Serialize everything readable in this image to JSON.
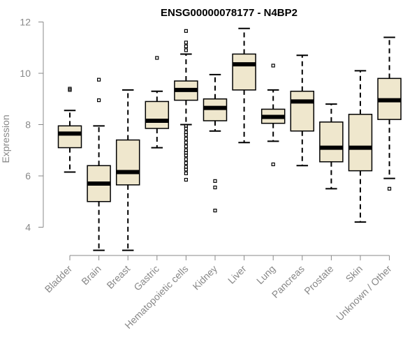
{
  "chart_data": {
    "type": "boxplot",
    "title": "ENSG00000078177 - N4BP2",
    "xlabel": "",
    "ylabel": "Expression",
    "ylim": [
      3,
      12.2
    ],
    "yticks": [
      4,
      6,
      8,
      10,
      12
    ],
    "box_color": "#efe7cd",
    "categories": [
      "Bladder",
      "Brain",
      "Breast",
      "Gastric",
      "Hematopoietic cells",
      "Kidney",
      "Liver",
      "Lung",
      "Pancreas",
      "Prostate",
      "Skin",
      "Unknown / Other"
    ],
    "boxes": [
      {
        "name": "Bladder",
        "whisker_low": 6.15,
        "q1": 7.1,
        "median": 7.65,
        "q3": 7.95,
        "whisker_high": 8.55,
        "outliers": [
          9.35,
          9.4
        ]
      },
      {
        "name": "Brain",
        "whisker_low": 3.1,
        "q1": 5.0,
        "median": 5.7,
        "q3": 6.4,
        "whisker_high": 7.95,
        "outliers": [
          8.95,
          9.75
        ]
      },
      {
        "name": "Breast",
        "whisker_low": 3.1,
        "q1": 5.65,
        "median": 6.15,
        "q3": 7.4,
        "whisker_high": 9.35,
        "outliers": []
      },
      {
        "name": "Gastric",
        "whisker_low": 7.1,
        "q1": 7.85,
        "median": 8.15,
        "q3": 8.9,
        "whisker_high": 9.3,
        "outliers": [
          10.6
        ]
      },
      {
        "name": "Hematopoietic cells",
        "whisker_low": 8.0,
        "q1": 8.95,
        "median": 9.35,
        "q3": 9.7,
        "whisker_high": 10.75,
        "outliers": [
          11.65,
          11.2,
          11.05,
          10.9,
          7.95,
          7.85,
          7.7,
          7.6,
          7.45,
          7.3,
          7.15,
          7.0,
          6.9,
          6.8,
          6.65,
          6.5,
          6.35,
          6.25,
          6.1,
          5.85
        ]
      },
      {
        "name": "Kidney",
        "whisker_low": 7.75,
        "q1": 8.15,
        "median": 8.65,
        "q3": 9.0,
        "whisker_high": 9.95,
        "outliers": [
          5.8,
          5.55,
          4.65
        ]
      },
      {
        "name": "Liver",
        "whisker_low": 7.3,
        "q1": 9.35,
        "median": 10.35,
        "q3": 10.75,
        "whisker_high": 11.75,
        "outliers": []
      },
      {
        "name": "Lung",
        "whisker_low": 7.35,
        "q1": 8.05,
        "median": 8.3,
        "q3": 8.6,
        "whisker_high": 9.35,
        "outliers": [
          10.3,
          6.45
        ]
      },
      {
        "name": "Pancreas",
        "whisker_low": 6.4,
        "q1": 7.75,
        "median": 8.9,
        "q3": 9.3,
        "whisker_high": 10.7,
        "outliers": []
      },
      {
        "name": "Prostate",
        "whisker_low": 5.5,
        "q1": 6.55,
        "median": 7.1,
        "q3": 8.1,
        "whisker_high": 8.8,
        "outliers": []
      },
      {
        "name": "Skin",
        "whisker_low": 4.2,
        "q1": 6.2,
        "median": 7.1,
        "q3": 8.4,
        "whisker_high": 10.1,
        "outliers": []
      },
      {
        "name": "Unknown / Other",
        "whisker_low": 5.9,
        "q1": 8.2,
        "median": 8.95,
        "q3": 9.8,
        "whisker_high": 11.4,
        "outliers": [
          5.5
        ]
      }
    ]
  }
}
